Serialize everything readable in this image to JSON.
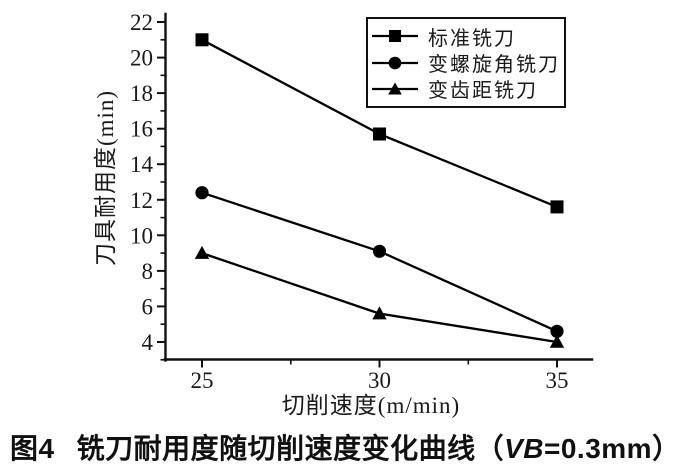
{
  "chart_data": {
    "type": "line",
    "x": [
      25,
      30,
      35
    ],
    "x_minor_ticks": [
      27.5,
      32.5
    ],
    "y_ticks": [
      4,
      6,
      8,
      10,
      12,
      14,
      16,
      18,
      20,
      22
    ],
    "y_minor_ticks": [
      3,
      5,
      7,
      9,
      11,
      13,
      15,
      17,
      19,
      21
    ],
    "xlim": [
      23.95,
      36.0
    ],
    "ylim": [
      2.95,
      22.45
    ],
    "xlabel": "切削速度(m/min)",
    "ylabel": "刀具耐用度(min)",
    "grid": false,
    "legend_position": "top-center-right",
    "line_color": "#000000",
    "series": [
      {
        "name": "标准铣刀",
        "marker": "square",
        "values": [
          21.0,
          15.7,
          11.6
        ]
      },
      {
        "name": "变螺旋角铣刀",
        "marker": "circle",
        "values": [
          12.4,
          9.1,
          4.6
        ]
      },
      {
        "name": "变齿距铣刀",
        "marker": "triangle",
        "values": [
          9.0,
          5.6,
          4.0
        ]
      }
    ]
  },
  "caption": {
    "fig_label": "图4",
    "before_vb": "铣刀耐用度随切削速度变化曲线（",
    "vb": "VB",
    "after_vb": "=0.3mm）"
  },
  "colors": {
    "ink": "#1a1a1a",
    "line": "#000000",
    "background": "#ffffff"
  }
}
